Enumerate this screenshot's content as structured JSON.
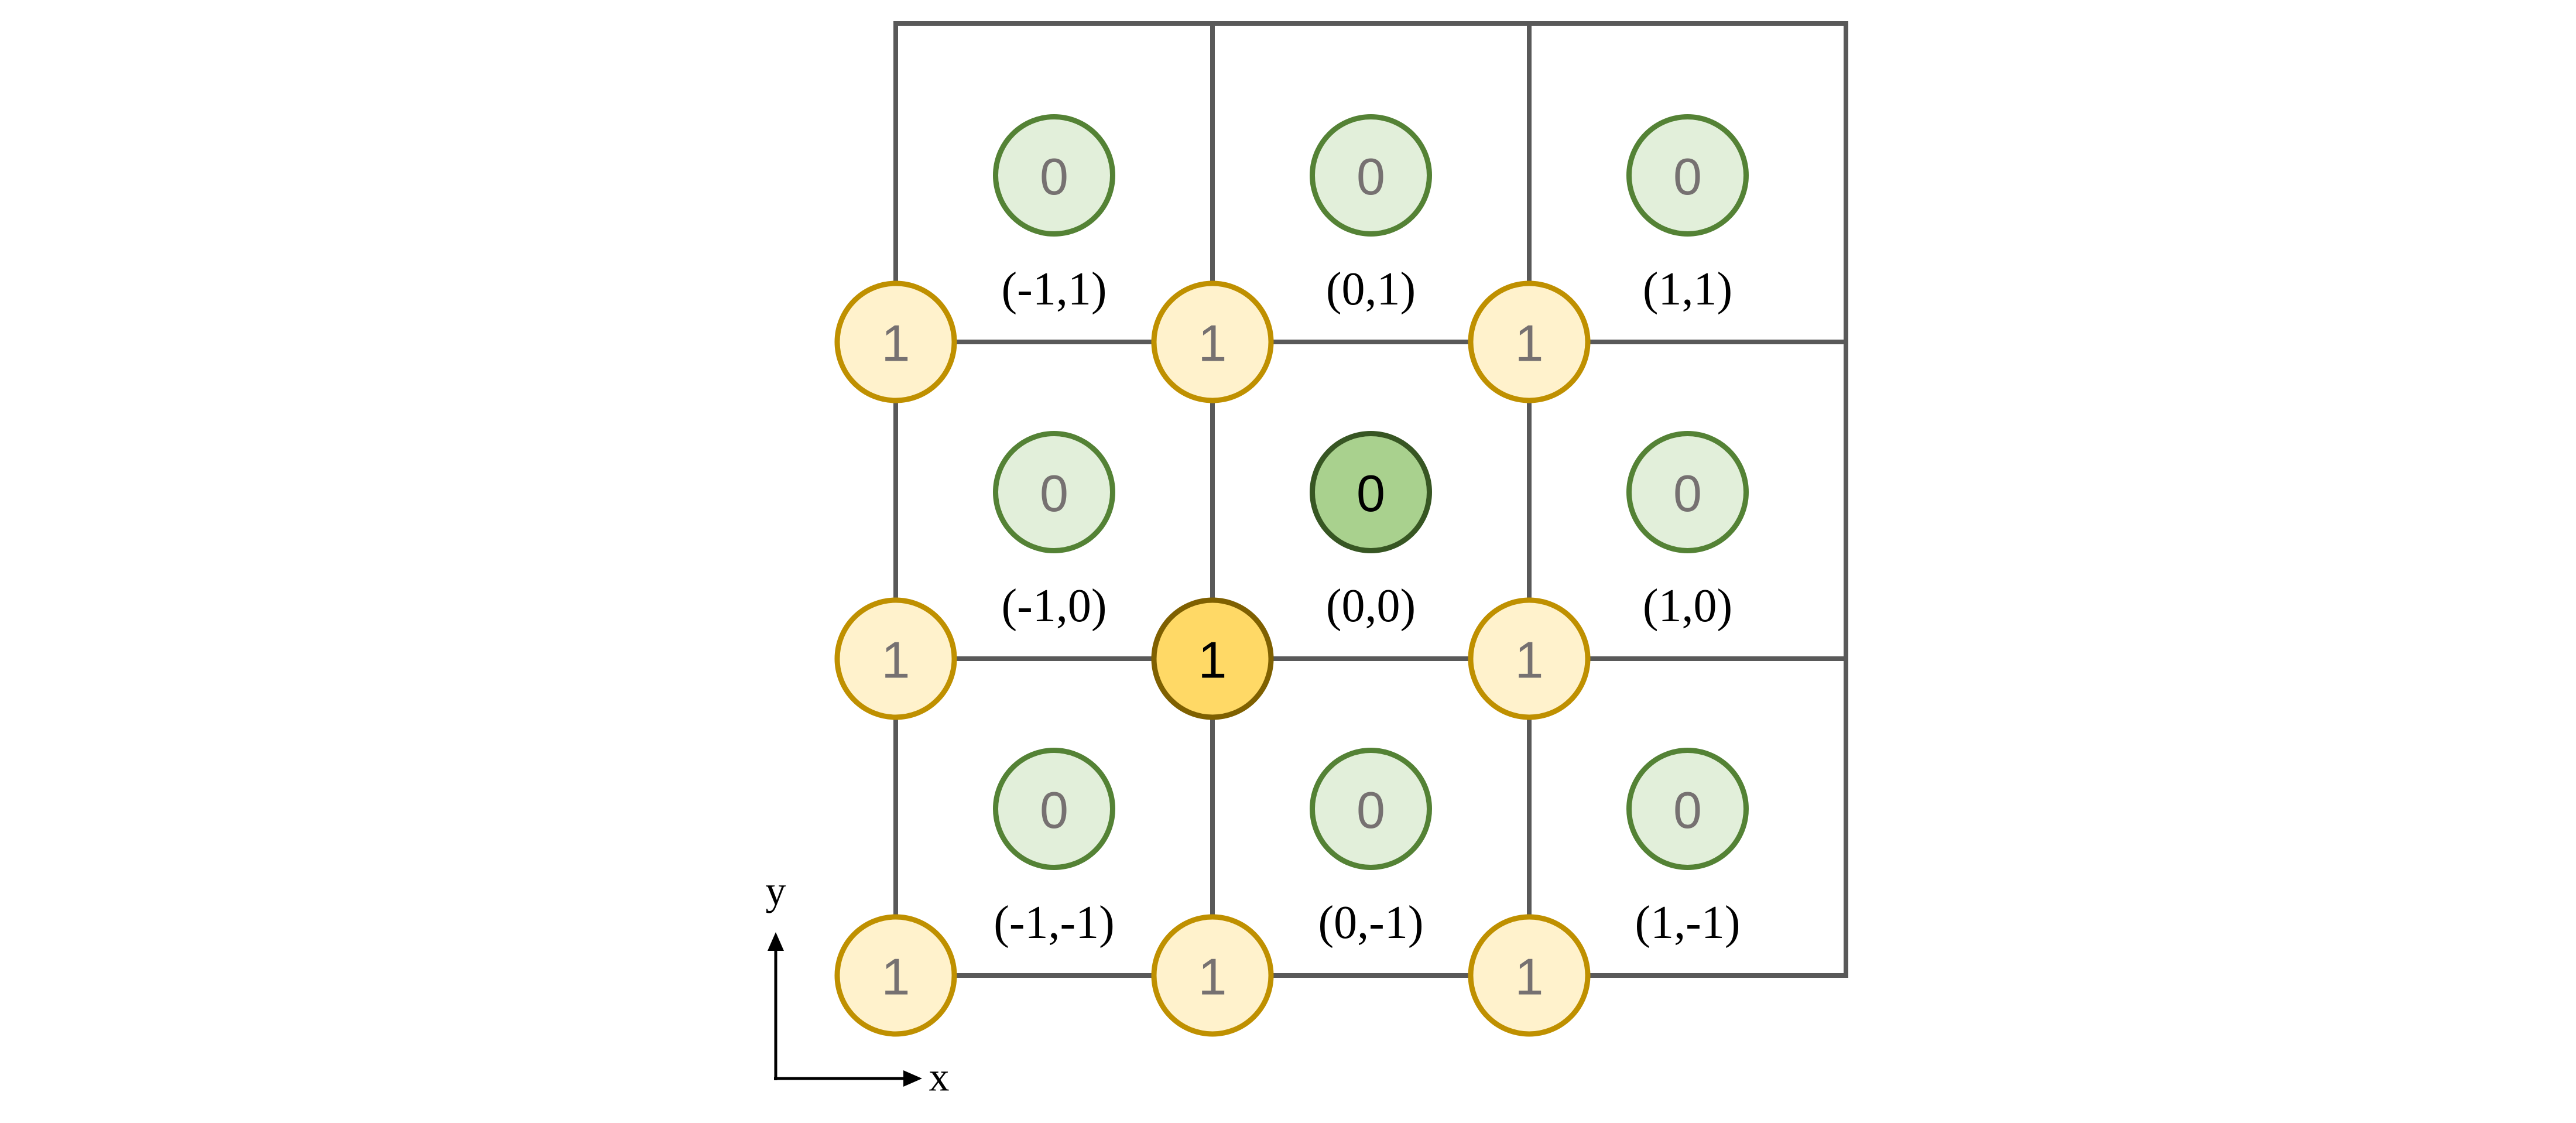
{
  "colors": {
    "grid": "#595959",
    "face_fill": "#e2efda",
    "face_stroke": "#548235",
    "face_fill_highlight": "#a9d18e",
    "face_stroke_highlight": "#375623",
    "vertex_fill": "#fff2cc",
    "vertex_stroke": "#bf9000",
    "vertex_fill_highlight": "#ffd966",
    "vertex_stroke_highlight": "#7f6000",
    "dim_text": "#767171",
    "bold_text": "#000000"
  },
  "faces": [
    {
      "col": -1,
      "row": 1,
      "value": "0",
      "label": "(-1,1)",
      "highlight": false
    },
    {
      "col": 0,
      "row": 1,
      "value": "0",
      "label": "(0,1)",
      "highlight": false
    },
    {
      "col": 1,
      "row": 1,
      "value": "0",
      "label": "(1,1)",
      "highlight": false
    },
    {
      "col": -1,
      "row": 0,
      "value": "0",
      "label": "(-1,0)",
      "highlight": false
    },
    {
      "col": 0,
      "row": 0,
      "value": "0",
      "label": "(0,0)",
      "highlight": true
    },
    {
      "col": 1,
      "row": 0,
      "value": "0",
      "label": "(1,0)",
      "highlight": false
    },
    {
      "col": -1,
      "row": -1,
      "value": "0",
      "label": "(-1,-1)",
      "highlight": false
    },
    {
      "col": 0,
      "row": -1,
      "value": "0",
      "label": "(0,-1)",
      "highlight": false
    },
    {
      "col": 1,
      "row": -1,
      "value": "0",
      "label": "(1,-1)",
      "highlight": false
    }
  ],
  "vertices": [
    {
      "col": -1,
      "row": 1,
      "value": "1",
      "highlight": false
    },
    {
      "col": 0,
      "row": 1,
      "value": "1",
      "highlight": false
    },
    {
      "col": 1,
      "row": 1,
      "value": "1",
      "highlight": false
    },
    {
      "col": -1,
      "row": 0,
      "value": "1",
      "highlight": false
    },
    {
      "col": 0,
      "row": 0,
      "value": "1",
      "highlight": true
    },
    {
      "col": 1,
      "row": 0,
      "value": "1",
      "highlight": false
    },
    {
      "col": -1,
      "row": -1,
      "value": "1",
      "highlight": false
    },
    {
      "col": 0,
      "row": -1,
      "value": "1",
      "highlight": false
    },
    {
      "col": 1,
      "row": -1,
      "value": "1",
      "highlight": false
    }
  ],
  "axes": {
    "x_label": "x",
    "y_label": "y"
  }
}
